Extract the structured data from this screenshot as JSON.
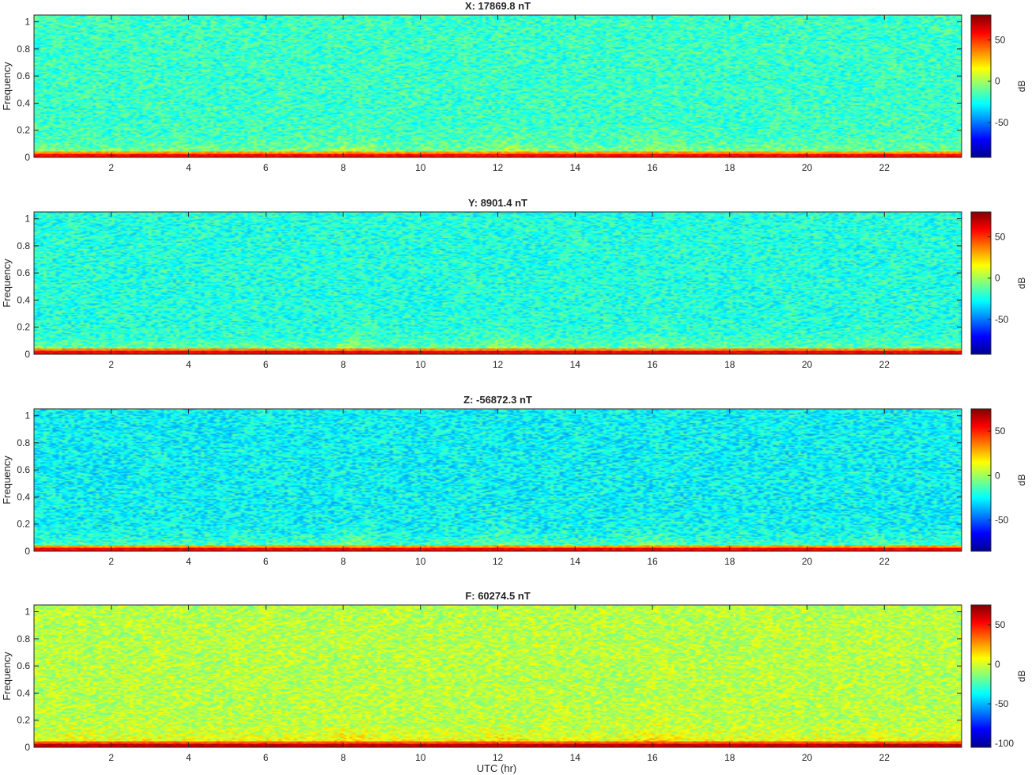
{
  "figure": {
    "xlabel": "UTC (hr)"
  },
  "colormap": {
    "name": "jet",
    "stops": [
      "#00008f",
      "#0000ff",
      "#00ffff",
      "#ffff00",
      "#ff0000",
      "#800000"
    ]
  },
  "chart_data": [
    {
      "type": "heatmap",
      "title": "X: 17869.8 nT",
      "ylabel": "Frequency",
      "xlabel": "",
      "xlim": [
        0,
        24
      ],
      "ylim": [
        0,
        1.05
      ],
      "xticks": [
        2,
        4,
        6,
        8,
        10,
        12,
        14,
        16,
        18,
        20,
        22
      ],
      "yticks": [
        0,
        0.2,
        0.4,
        0.6,
        0.8,
        1
      ],
      "colorbar": {
        "label": "dB",
        "clim": [
          -92,
          80
        ],
        "ticks": [
          50,
          0,
          -50
        ]
      },
      "background_level_db": -18,
      "low_frequency_level_db": 40,
      "bursts_utc_hr": [
        7.8,
        11.8,
        15.6
      ]
    },
    {
      "type": "heatmap",
      "title": "Y: 8901.4 nT",
      "ylabel": "Frequency",
      "xlabel": "",
      "xlim": [
        0,
        24
      ],
      "ylim": [
        0,
        1.05
      ],
      "xticks": [
        2,
        4,
        6,
        8,
        10,
        12,
        14,
        16,
        18,
        20,
        22
      ],
      "yticks": [
        0,
        0.2,
        0.4,
        0.6,
        0.8,
        1
      ],
      "colorbar": {
        "label": "dB",
        "clim": [
          -92,
          80
        ],
        "ticks": [
          50,
          0,
          -50
        ]
      },
      "background_level_db": -22,
      "low_frequency_level_db": 42,
      "bursts_utc_hr": [
        7.8,
        11.8,
        15.6
      ]
    },
    {
      "type": "heatmap",
      "title": "Z: -56872.3 nT",
      "ylabel": "Frequency",
      "xlabel": "",
      "xlim": [
        0,
        24
      ],
      "ylim": [
        0,
        1.05
      ],
      "xticks": [
        2,
        4,
        6,
        8,
        10,
        12,
        14,
        16,
        18,
        20,
        22
      ],
      "yticks": [
        0,
        0.2,
        0.4,
        0.6,
        0.8,
        1
      ],
      "colorbar": {
        "label": "dB",
        "clim": [
          -85,
          75
        ],
        "ticks": [
          50,
          0,
          -50
        ]
      },
      "background_level_db": -25,
      "low_frequency_level_db": 38,
      "bursts_utc_hr": [
        7.8,
        11.8,
        15.6
      ]
    },
    {
      "type": "heatmap",
      "title": "F: 60274.5 nT",
      "ylabel": "Frequency",
      "xlabel": "UTC (hr)",
      "xlim": [
        0,
        24
      ],
      "ylim": [
        0,
        1.05
      ],
      "xticks": [
        2,
        4,
        6,
        8,
        10,
        12,
        14,
        16,
        18,
        20,
        22
      ],
      "yticks": [
        0,
        0.2,
        0.4,
        0.6,
        0.8,
        1
      ],
      "colorbar": {
        "label": "dB",
        "clim": [
          -105,
          75
        ],
        "ticks": [
          50,
          0,
          -50,
          -100
        ]
      },
      "background_level_db": -5,
      "low_frequency_level_db": 45,
      "bursts_utc_hr": [
        7.8,
        11.8,
        15.6
      ]
    }
  ]
}
